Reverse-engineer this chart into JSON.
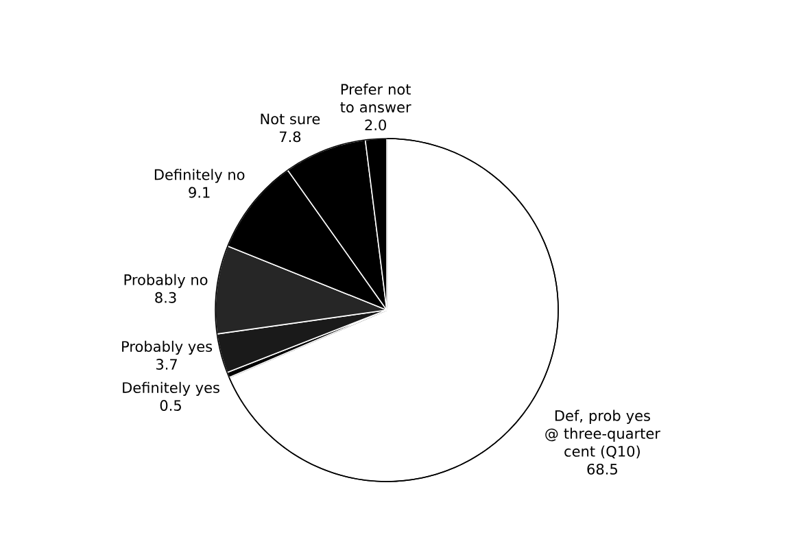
{
  "chart_data": {
    "type": "pie",
    "categories": [
      "Def, prob yes @ three-quarter cent (Q10)",
      "Definitely yes",
      "Probably yes",
      "Probably no",
      "Definitely no",
      "Not sure",
      "Prefer not to answer"
    ],
    "values": [
      68.5,
      0.5,
      3.7,
      8.3,
      9.1,
      7.8,
      2.0
    ],
    "colors": [
      "#ffffff",
      "#000000",
      "#1a1a1a",
      "#262626",
      "#000000",
      "#000000",
      "#000000"
    ],
    "value_labels": [
      "68.5",
      "0.5",
      "3.7",
      "8.3",
      "9.1",
      "7.8",
      "2.0"
    ]
  }
}
